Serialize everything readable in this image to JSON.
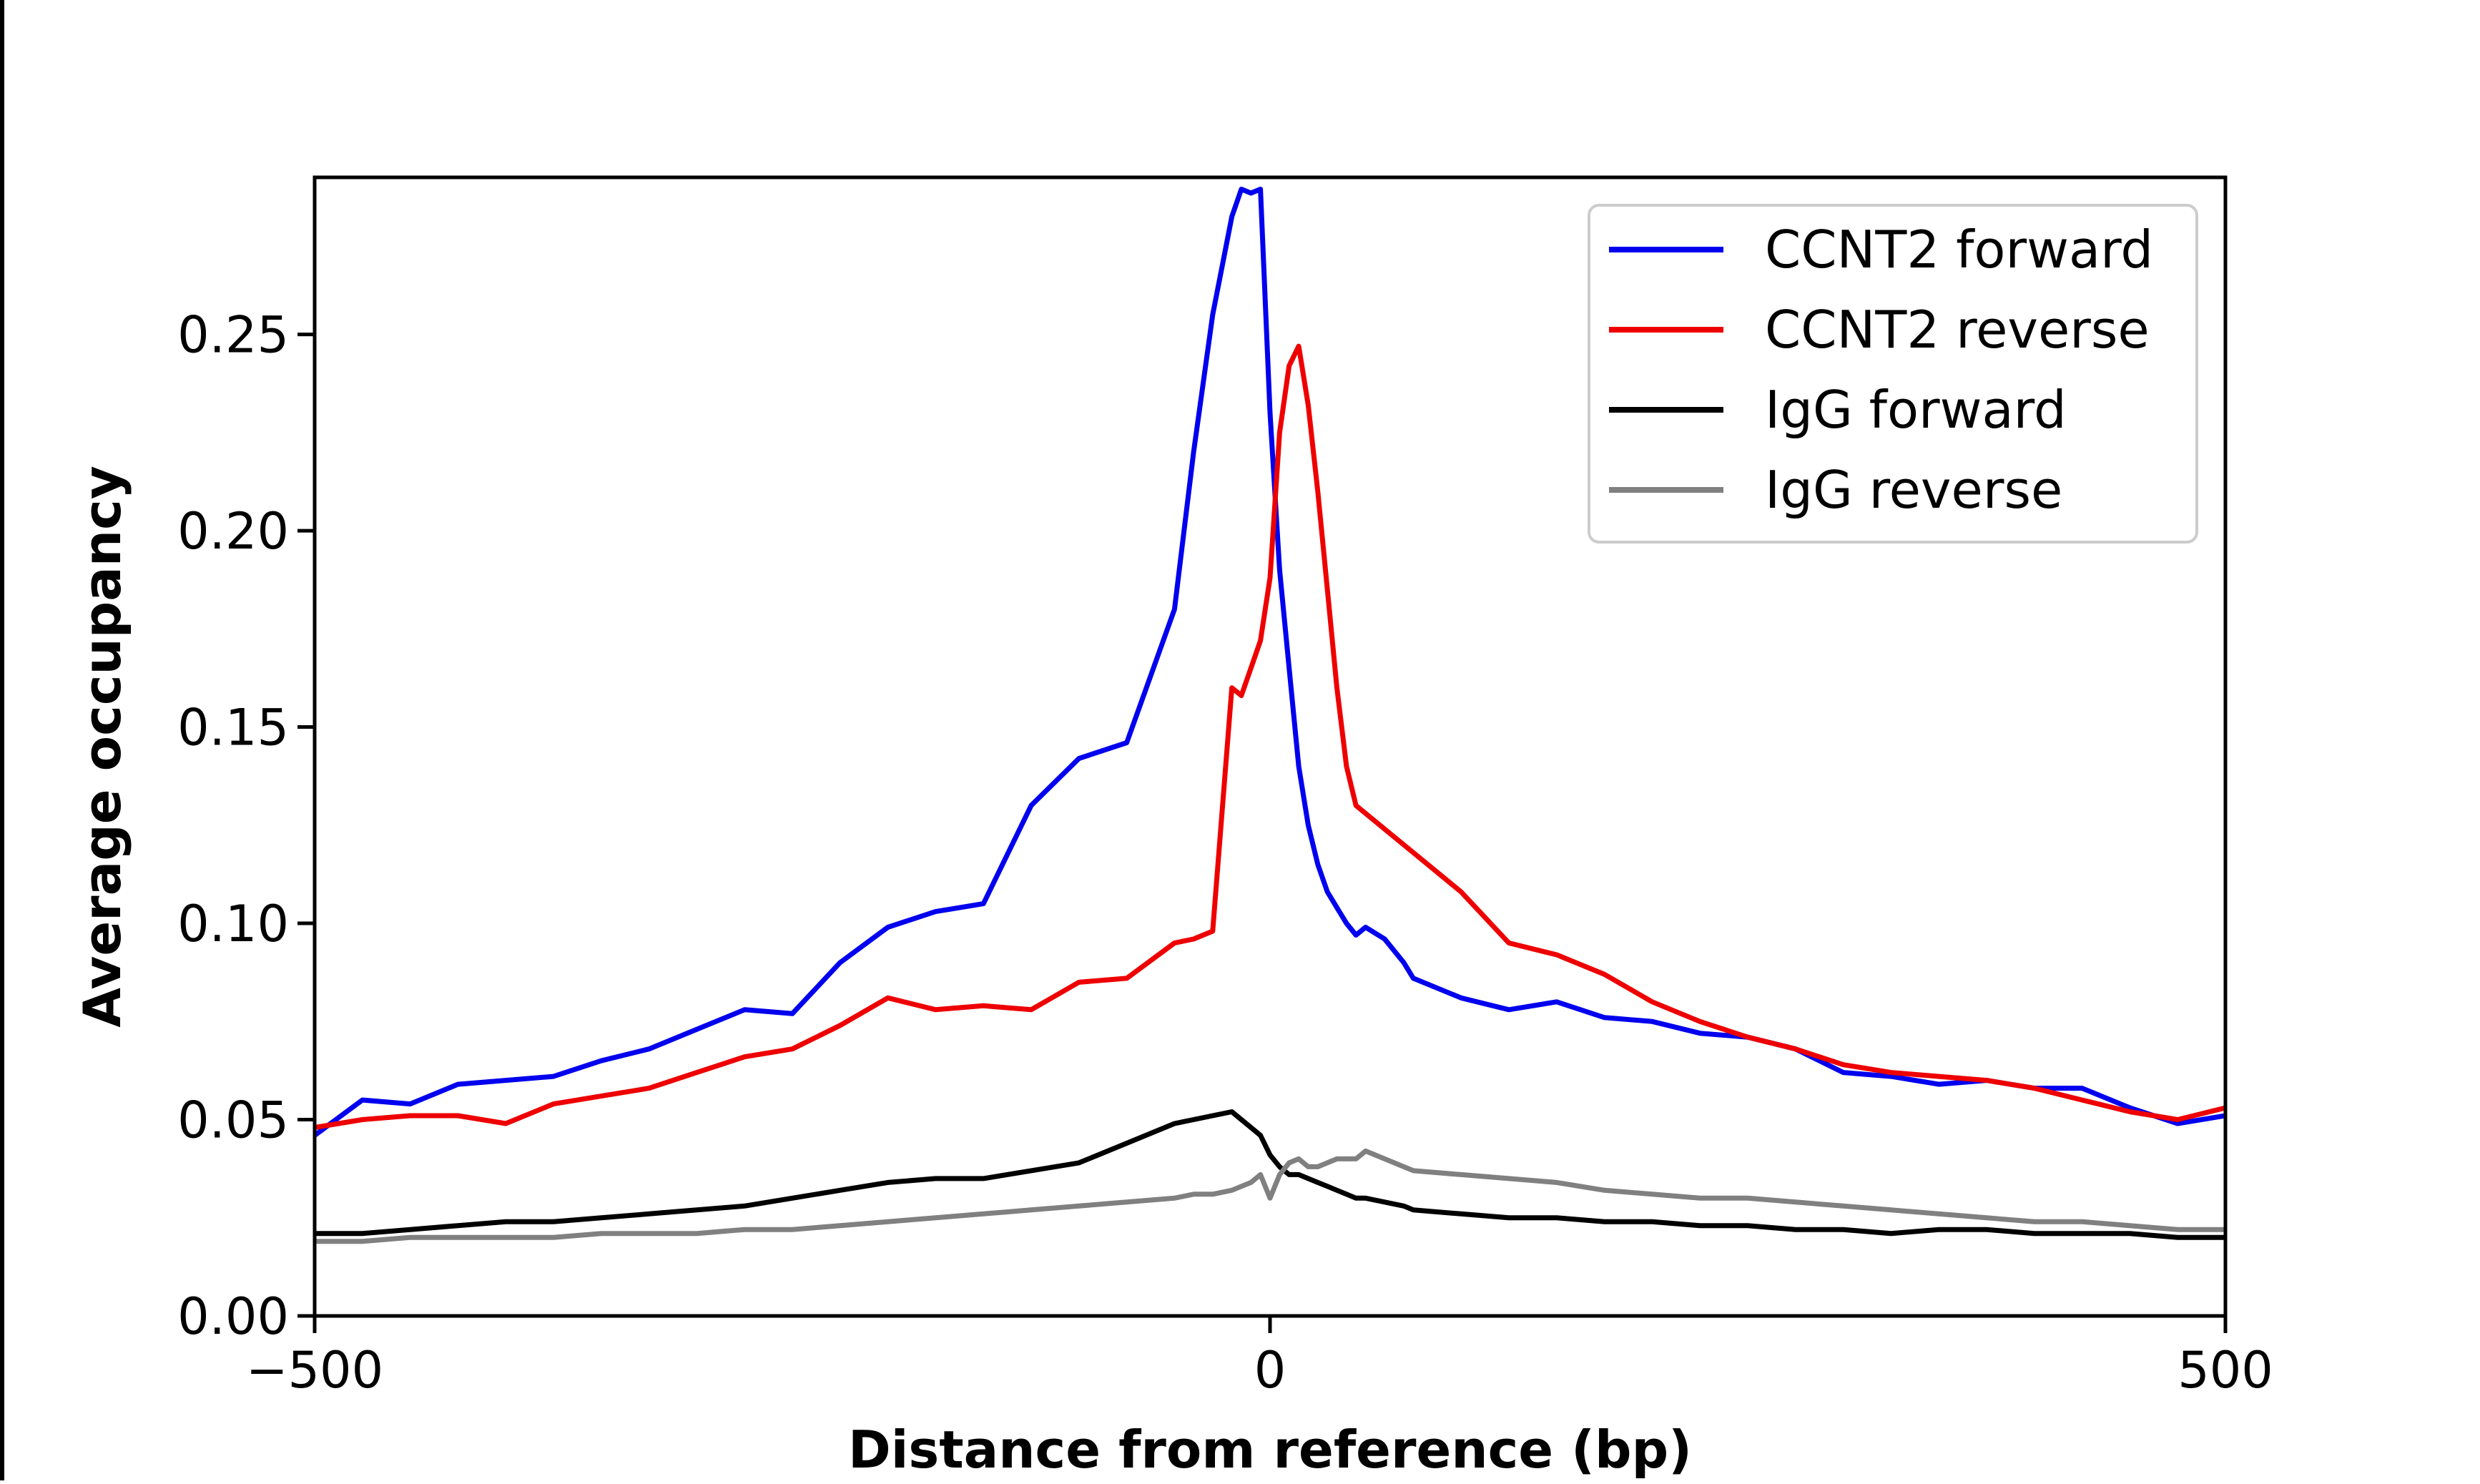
{
  "chart_data": {
    "type": "line",
    "title": "",
    "xlabel": "Distance from reference (bp)",
    "ylabel": "Average occupancy",
    "xlim": [
      -500,
      500
    ],
    "ylim": [
      0,
      0.29
    ],
    "x_ticks": [
      -500,
      0,
      500
    ],
    "x_tick_labels": [
      "−500",
      "0",
      "500"
    ],
    "y_ticks": [
      0.0,
      0.05,
      0.1,
      0.15,
      0.2,
      0.25
    ],
    "y_tick_labels": [
      "0.00",
      "0.05",
      "0.10",
      "0.15",
      "0.20",
      "0.25"
    ],
    "grid": false,
    "legend_position": "top-right",
    "x": [
      -500,
      -475,
      -450,
      -425,
      -400,
      -375,
      -350,
      -325,
      -300,
      -275,
      -250,
      -225,
      -200,
      -175,
      -150,
      -125,
      -100,
      -75,
      -50,
      -40,
      -30,
      -20,
      -15,
      -10,
      -5,
      0,
      5,
      10,
      15,
      20,
      25,
      30,
      35,
      40,
      45,
      50,
      60,
      70,
      75,
      100,
      125,
      150,
      175,
      200,
      225,
      250,
      275,
      300,
      325,
      350,
      375,
      400,
      425,
      450,
      475,
      500
    ],
    "series": [
      {
        "name": "CCNT2 forward",
        "color": "#0000ee",
        "values": [
          0.046,
          0.055,
          0.054,
          0.059,
          0.06,
          0.061,
          0.065,
          0.068,
          0.073,
          0.078,
          0.077,
          0.09,
          0.099,
          0.103,
          0.105,
          0.13,
          0.142,
          0.146,
          0.18,
          0.22,
          0.255,
          0.28,
          0.287,
          0.286,
          0.287,
          0.23,
          0.19,
          0.165,
          0.14,
          0.125,
          0.115,
          0.108,
          0.104,
          0.1,
          0.097,
          0.099,
          0.096,
          0.09,
          0.086,
          0.081,
          0.078,
          0.08,
          0.076,
          0.075,
          0.072,
          0.071,
          0.068,
          0.062,
          0.061,
          0.059,
          0.06,
          0.058,
          0.058,
          0.053,
          0.049,
          0.051
        ]
      },
      {
        "name": "CCNT2 reverse",
        "color": "#ee0000",
        "values": [
          0.048,
          0.05,
          0.051,
          0.051,
          0.049,
          0.054,
          0.056,
          0.058,
          0.062,
          0.066,
          0.068,
          0.074,
          0.081,
          0.078,
          0.079,
          0.078,
          0.085,
          0.086,
          0.095,
          0.096,
          0.098,
          0.16,
          0.158,
          0.165,
          0.172,
          0.188,
          0.225,
          0.242,
          0.247,
          0.232,
          0.21,
          0.185,
          0.16,
          0.14,
          0.13,
          0.128,
          0.124,
          0.12,
          0.118,
          0.108,
          0.095,
          0.092,
          0.087,
          0.08,
          0.075,
          0.071,
          0.068,
          0.064,
          0.062,
          0.061,
          0.06,
          0.058,
          0.055,
          0.052,
          0.05,
          0.053
        ]
      },
      {
        "name": "IgG forward",
        "color": "#000000",
        "values": [
          0.021,
          0.021,
          0.022,
          0.023,
          0.024,
          0.024,
          0.025,
          0.026,
          0.027,
          0.028,
          0.03,
          0.032,
          0.034,
          0.035,
          0.035,
          0.037,
          0.039,
          0.044,
          0.049,
          0.05,
          0.051,
          0.052,
          0.05,
          0.048,
          0.046,
          0.041,
          0.038,
          0.036,
          0.036,
          0.035,
          0.034,
          0.033,
          0.032,
          0.031,
          0.03,
          0.03,
          0.029,
          0.028,
          0.027,
          0.026,
          0.025,
          0.025,
          0.024,
          0.024,
          0.023,
          0.023,
          0.022,
          0.022,
          0.021,
          0.022,
          0.022,
          0.021,
          0.021,
          0.021,
          0.02,
          0.02
        ]
      },
      {
        "name": "IgG reverse",
        "color": "#808080",
        "values": [
          0.019,
          0.019,
          0.02,
          0.02,
          0.02,
          0.02,
          0.021,
          0.021,
          0.021,
          0.022,
          0.022,
          0.023,
          0.024,
          0.025,
          0.026,
          0.027,
          0.028,
          0.029,
          0.03,
          0.031,
          0.031,
          0.032,
          0.033,
          0.034,
          0.036,
          0.03,
          0.036,
          0.039,
          0.04,
          0.038,
          0.038,
          0.039,
          0.04,
          0.04,
          0.04,
          0.042,
          0.04,
          0.038,
          0.037,
          0.036,
          0.035,
          0.034,
          0.032,
          0.031,
          0.03,
          0.03,
          0.029,
          0.028,
          0.027,
          0.026,
          0.025,
          0.024,
          0.024,
          0.023,
          0.022,
          0.022
        ]
      }
    ]
  }
}
